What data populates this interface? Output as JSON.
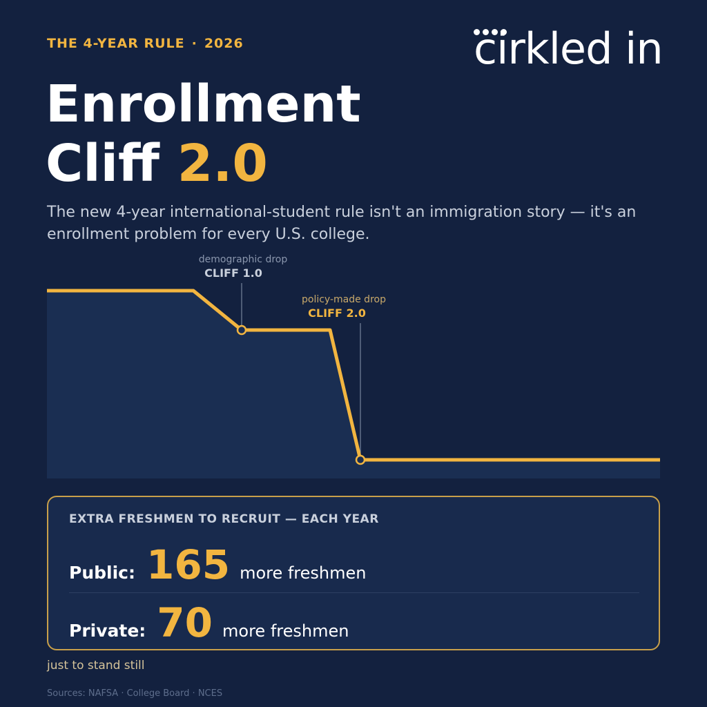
{
  "header": {
    "eyebrow_label": "THE 4-YEAR RULE",
    "eyebrow_separator": "·",
    "eyebrow_year": "2026",
    "logo_text": "cirkled in"
  },
  "title": {
    "line1": "Enrollment",
    "line2_prefix": "Cliff",
    "line2_accent": "2.0"
  },
  "subtitle": "The new 4-year international-student rule isn't an immigration story — it's an enrollment problem for every U.S. college.",
  "annotations": {
    "cliff1_caption": "demographic drop",
    "cliff1_label": "CLIFF 1.0",
    "cliff2_caption": "policy-made drop",
    "cliff2_label": "CLIFF 2.0"
  },
  "stats": {
    "heading": "EXTRA FRESHMEN TO RECRUIT — EACH YEAR",
    "public_label": "Public:",
    "public_value": "165",
    "public_unit": "more freshmen",
    "private_label": "Private:",
    "private_value": "70",
    "private_unit": "more freshmen"
  },
  "footnote": "just to stand still",
  "sources": "Sources: NAFSA · College Board · NCES",
  "colors": {
    "background": "#13213f",
    "accent": "#f2b540",
    "area_fill": "#1a2e52"
  }
}
